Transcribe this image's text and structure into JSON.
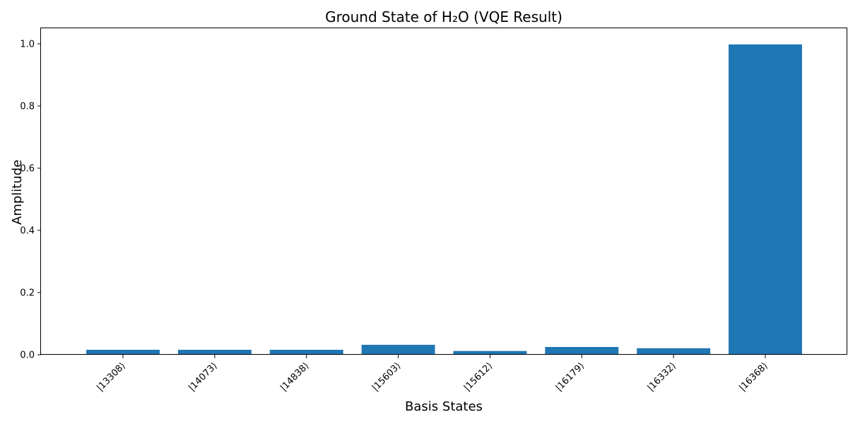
{
  "chart_data": {
    "type": "bar",
    "title": "Ground State of H₂O (VQE Result)",
    "xlabel": "Basis States",
    "ylabel": "Amplitude",
    "categories": [
      "|13308⟩",
      "|14073⟩",
      "|14838⟩",
      "|15603⟩",
      "|15612⟩",
      "|16179⟩",
      "|16332⟩",
      "|16368⟩"
    ],
    "values": [
      0.016,
      0.016,
      0.016,
      0.032,
      0.012,
      0.025,
      0.021,
      0.998
    ],
    "ylim": [
      0,
      1.05
    ],
    "yticks": [
      0.0,
      0.2,
      0.4,
      0.6,
      0.8,
      1.0
    ],
    "ytick_labels": [
      "0.0",
      "0.2",
      "0.4",
      "0.6",
      "0.8",
      "1.0"
    ],
    "bar_color": "#1f77b4",
    "grid": false
  }
}
